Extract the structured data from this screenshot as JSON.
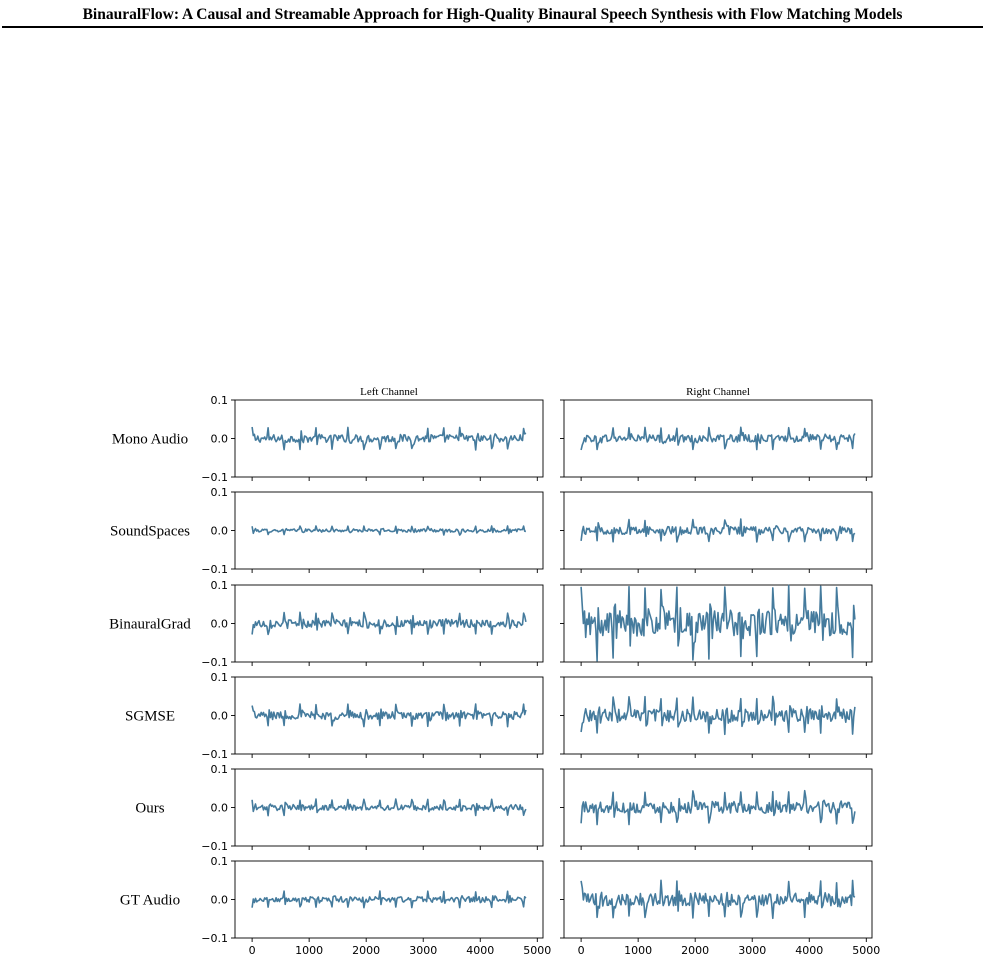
{
  "page": {
    "running_header": "BinauralFlow: A Causal and Streamable Approach for High-Quality Binaural Speech Synthesis with Flow Matching Models"
  },
  "chart_data": {
    "type": "line",
    "layout": "grid of 6 rows x 2 columns",
    "column_titles": [
      "Left Channel",
      "Right Channel"
    ],
    "row_labels": [
      "Mono Audio",
      "SoundSpaces",
      "BinauralGrad",
      "SGMSE",
      "Ours",
      "GT Audio"
    ],
    "ylim": [
      -0.1,
      0.1
    ],
    "yticks": [
      -0.1,
      0.0,
      0.1
    ],
    "ytick_labels": [
      "−0.1",
      "0.0",
      "0.1"
    ],
    "xlim": [
      -300,
      5100
    ],
    "xticks": [
      0,
      1000,
      2000,
      3000,
      4000,
      5000
    ],
    "xtick_labels": [
      "0",
      "1000",
      "2000",
      "3000",
      "4000",
      "5000"
    ],
    "x_range": [
      0,
      4800
    ],
    "line_color": "#457b9d",
    "waveform_period_samples": 280,
    "approx_peak_amplitude": [
      [
        0.03,
        0.03
      ],
      [
        0.012,
        0.03
      ],
      [
        0.03,
        0.1
      ],
      [
        0.03,
        0.05
      ],
      [
        0.022,
        0.045
      ],
      [
        0.022,
        0.05
      ]
    ]
  }
}
